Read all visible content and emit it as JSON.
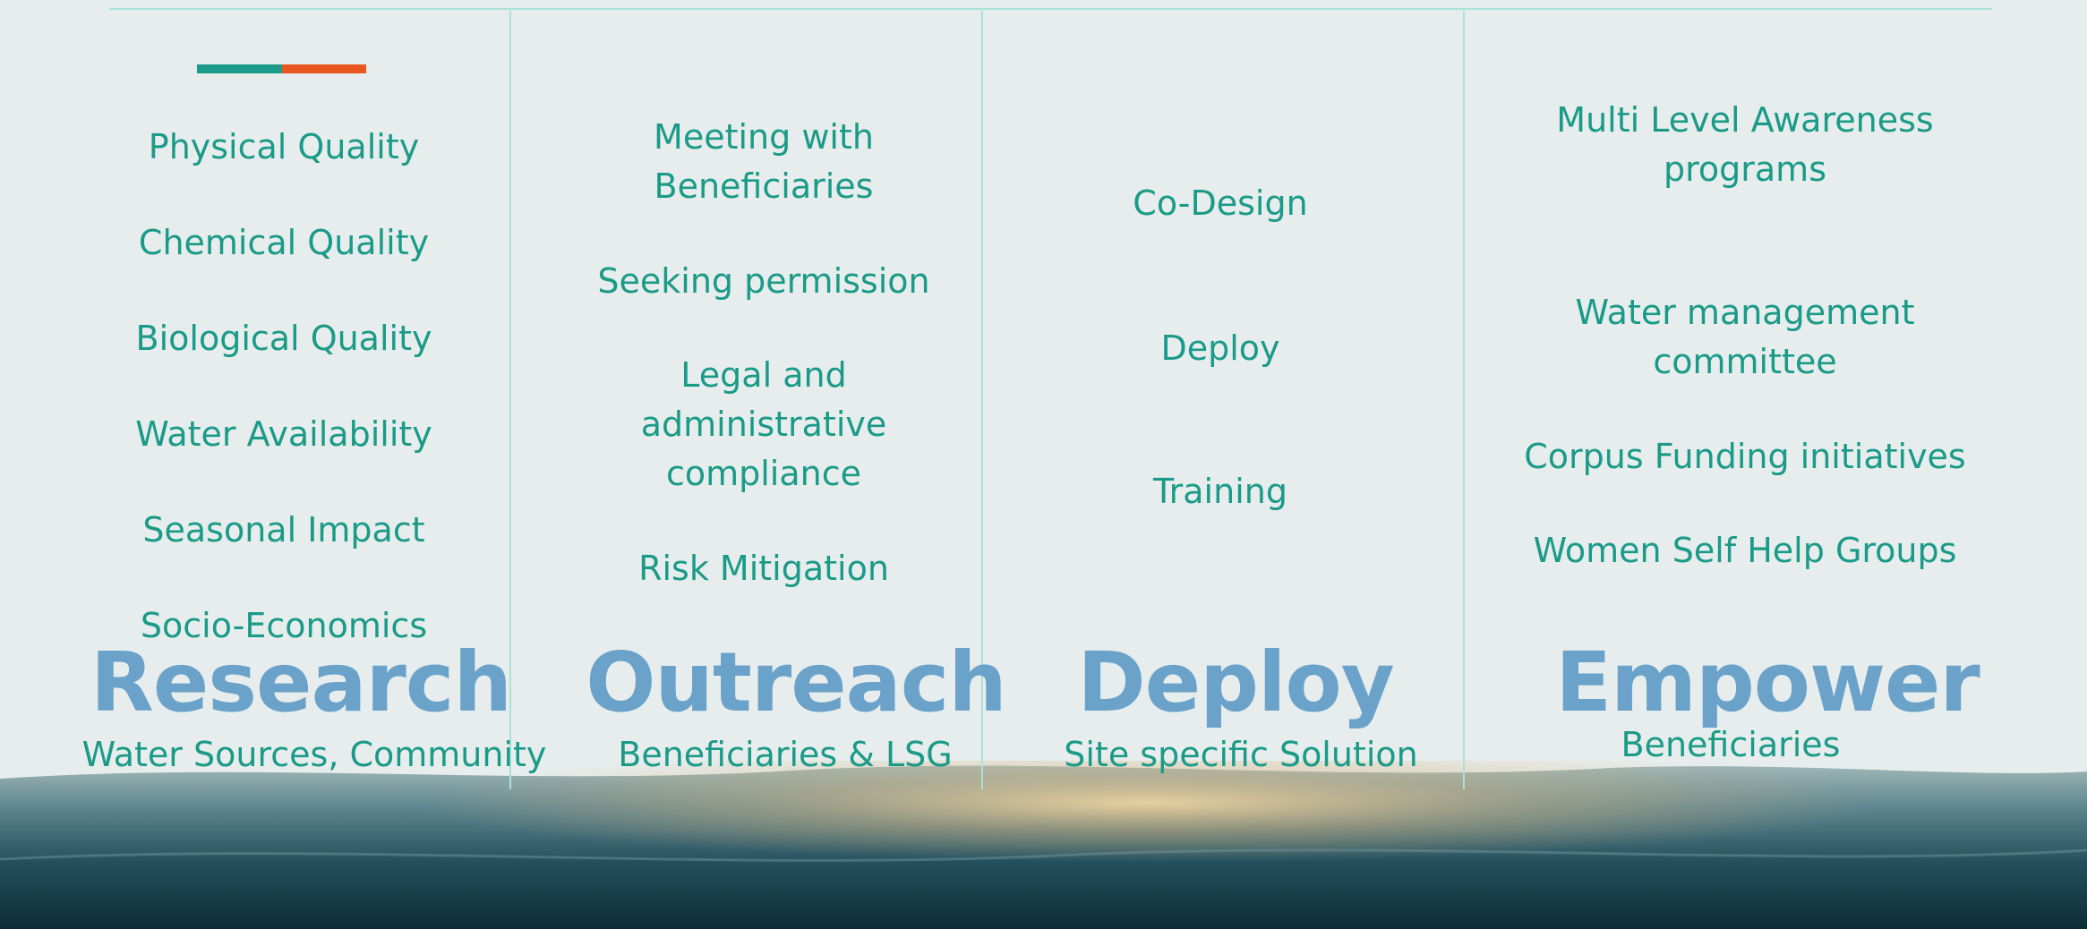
{
  "columns": [
    {
      "heading": "Research",
      "subtitle": "Water Sources, Community",
      "items": [
        [
          "Physical Quality"
        ],
        [
          "Chemical Quality"
        ],
        [
          "Biological Quality"
        ],
        [
          "Water Availability"
        ],
        [
          "Seasonal Impact"
        ],
        [
          "Socio-Economics"
        ]
      ]
    },
    {
      "heading": "Outreach",
      "subtitle": "Beneficiaries & LSG",
      "items": [
        [
          "Meeting with",
          "Beneficiaries"
        ],
        [
          "Seeking permission"
        ],
        [
          "Legal and",
          "administrative",
          "compliance"
        ],
        [
          "Risk Mitigation"
        ]
      ]
    },
    {
      "heading": "Deploy",
      "subtitle": "Site specific Solution",
      "items": [
        [
          "Co-Design"
        ],
        [
          "Deploy"
        ],
        [
          "Training"
        ]
      ]
    },
    {
      "heading": "Empower",
      "subtitle": "Beneficiaries",
      "items": [
        [
          "Multi Level Awareness",
          "programs"
        ],
        [
          "Water management",
          "committee"
        ],
        [
          "Corpus Funding initiatives"
        ],
        [
          "Women Self Help Groups"
        ]
      ]
    }
  ]
}
